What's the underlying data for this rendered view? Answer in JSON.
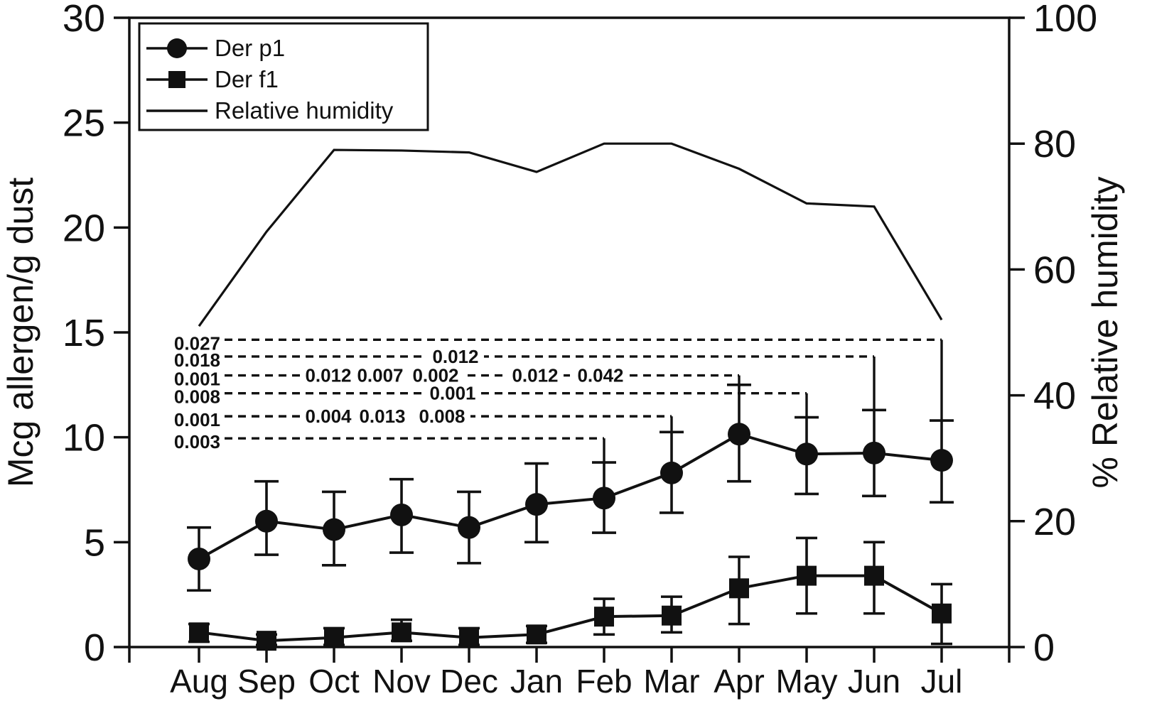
{
  "colors": {
    "ink": "#111111",
    "background": "#ffffff"
  },
  "chart_data": {
    "type": "line",
    "title": "",
    "categories": [
      "Aug",
      "Sep",
      "Oct",
      "Nov",
      "Dec",
      "Jan",
      "Feb",
      "Mar",
      "Apr",
      "May",
      "Jun",
      "Jul"
    ],
    "ylabel_left": "Mcg allergen/g dust",
    "ylabel_right": "% Relative humidity",
    "ylim_left": [
      0,
      30
    ],
    "ylim_right": [
      0,
      100
    ],
    "yticks_left": [
      0,
      5,
      10,
      15,
      20,
      25,
      30
    ],
    "yticks_right": [
      0,
      20,
      40,
      60,
      80,
      100
    ],
    "grid": false,
    "legend_position": "top-left",
    "legend": [
      "Der p1",
      "Der f1",
      "Relative humidity"
    ],
    "series": [
      {
        "name": "Der p1",
        "marker": "circle",
        "axis": "left",
        "values": [
          4.2,
          6.0,
          5.6,
          6.3,
          5.7,
          6.8,
          7.1,
          8.3,
          10.15,
          9.2,
          9.25,
          8.9
        ],
        "err_lo": [
          2.7,
          4.4,
          3.9,
          4.5,
          4.0,
          5.0,
          5.45,
          6.4,
          7.9,
          7.3,
          7.2,
          6.9
        ],
        "err_hi": [
          5.7,
          7.9,
          7.4,
          8.0,
          7.4,
          8.75,
          8.8,
          10.25,
          12.5,
          10.95,
          11.3,
          10.8
        ]
      },
      {
        "name": "Der f1",
        "marker": "square",
        "axis": "left",
        "values": [
          0.7,
          0.3,
          0.45,
          0.7,
          0.45,
          0.6,
          1.45,
          1.5,
          2.8,
          3.4,
          3.4,
          1.6
        ],
        "err_lo": [
          0.25,
          0.1,
          0.1,
          0.3,
          0.1,
          0.2,
          0.6,
          0.7,
          1.1,
          1.6,
          1.6,
          0.15
        ],
        "err_hi": [
          1.1,
          0.6,
          0.9,
          1.3,
          0.9,
          1.0,
          2.3,
          2.4,
          4.3,
          5.2,
          5.0,
          3.0
        ]
      },
      {
        "name": "Relative humidity",
        "marker": "none",
        "axis": "right",
        "values": [
          51,
          66,
          79,
          78.9,
          78.6,
          75.5,
          80,
          80,
          76,
          70.5,
          70,
          52
        ]
      }
    ],
    "p_value_annotations": [
      {
        "label": "0.027",
        "level": 14.65,
        "end_month": "Jul",
        "mid_labels": []
      },
      {
        "label": "0.018",
        "level": 13.85,
        "end_month": "Jun",
        "mid_labels": [
          {
            "text": "0.012",
            "x": 641
          }
        ]
      },
      {
        "label": "0.001",
        "level": 12.95,
        "end_month": "Apr",
        "mid_labels": [
          {
            "text": "0.012",
            "x": 462
          },
          {
            "text": "0.007",
            "x": 535
          },
          {
            "text": "0.002",
            "x": 613
          },
          {
            "text": "0.012",
            "x": 753
          },
          {
            "text": "0.042",
            "x": 845
          }
        ]
      },
      {
        "label": "0.008",
        "level": 12.1,
        "end_month": "May",
        "mid_labels": [
          {
            "text": "0.001",
            "x": 637
          }
        ]
      },
      {
        "label": "0.001",
        "level": 11.0,
        "end_month": "Mar",
        "mid_labels": [
          {
            "text": "0.004",
            "x": 462
          },
          {
            "text": "0.013",
            "x": 538
          },
          {
            "text": "0.008",
            "x": 622
          }
        ]
      },
      {
        "label": "0.003",
        "level": 9.95,
        "end_month": "Feb",
        "mid_labels": []
      }
    ]
  }
}
